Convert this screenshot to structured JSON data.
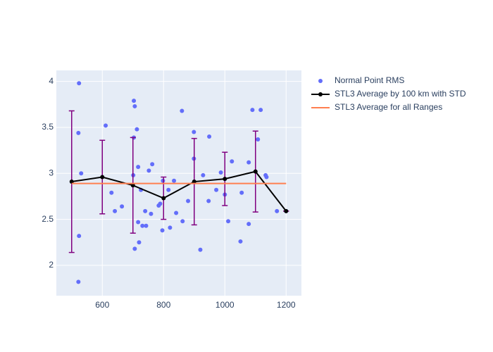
{
  "chart_data": {
    "type": "scatter",
    "xlim": [
      450,
      1250
    ],
    "ylim": [
      1.67,
      4.12
    ],
    "xticks": [
      600,
      800,
      1000,
      1200
    ],
    "yticks": [
      2,
      2.5,
      3,
      3.5,
      4
    ],
    "grid": true,
    "legend": "right",
    "series": [
      {
        "name": "Normal Point RMS",
        "color": "#636efa",
        "mode": "markers",
        "x": [
          524,
          522,
          531,
          524,
          522,
          611,
          630,
          641,
          664,
          703,
          706,
          713,
          703,
          701,
          717,
          726,
          717,
          731,
          743,
          740,
          720,
          706,
          752,
          763,
          759,
          784,
          789,
          798,
          796,
          816,
          821,
          834,
          841,
          860,
          862,
          880,
          899,
          899,
          929,
          949,
          947,
          920,
          972,
          987,
          1000,
          1023,
          1011,
          1055,
          1051,
          1078,
          1078,
          1090,
          1117,
          1108,
          1133,
          1136,
          1170,
          1200
        ],
        "values": [
          3.98,
          3.44,
          3.0,
          2.32,
          1.82,
          3.52,
          2.79,
          2.59,
          2.64,
          3.79,
          3.73,
          3.48,
          3.39,
          2.98,
          3.07,
          2.82,
          2.47,
          2.43,
          2.43,
          2.59,
          2.25,
          2.18,
          3.03,
          3.1,
          2.56,
          2.65,
          2.67,
          2.92,
          2.38,
          2.82,
          2.41,
          2.92,
          2.57,
          3.68,
          2.48,
          2.7,
          3.45,
          3.16,
          2.98,
          3.4,
          2.7,
          2.17,
          2.82,
          3.01,
          2.77,
          3.13,
          2.48,
          2.79,
          2.26,
          3.12,
          2.45,
          3.69,
          3.69,
          3.37,
          2.98,
          2.96,
          2.59,
          2.59
        ]
      },
      {
        "name": "STL3 Average by 100 km with STD",
        "color": "#000000",
        "mode": "lines+markers",
        "x": [
          500,
          600,
          700,
          800,
          900,
          1000,
          1100,
          1200
        ],
        "values": [
          2.91,
          2.96,
          2.87,
          2.73,
          2.91,
          2.94,
          3.02,
          2.59
        ],
        "error": [
          0.77,
          0.4,
          0.52,
          0.23,
          0.47,
          0.29,
          0.44,
          0
        ],
        "error_color": "#800080"
      },
      {
        "name": "STL3 Average for all Ranges",
        "color": "#ff7f50",
        "mode": "lines",
        "x": [
          500,
          1200
        ],
        "values": [
          2.89,
          2.89
        ]
      }
    ]
  }
}
